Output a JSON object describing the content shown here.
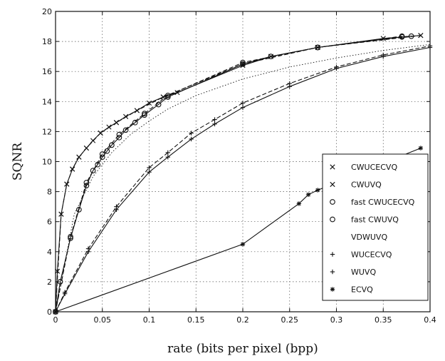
{
  "chart_data": {
    "type": "line",
    "title": "",
    "xlabel": "rate (bits per pixel (bpp)",
    "ylabel": "SQNR",
    "xlim": [
      0,
      0.4
    ],
    "ylim": [
      0,
      20
    ],
    "xticks": [
      "0",
      "0.05",
      "0.1",
      "0.15",
      "0.2",
      "0.25",
      "0.3",
      "0.35",
      "0.4"
    ],
    "yticks": [
      "0",
      "2",
      "4",
      "6",
      "8",
      "10",
      "12",
      "14",
      "16",
      "18",
      "20"
    ],
    "grid": true,
    "legend_position": "lower-right",
    "series": [
      {
        "name": "CWUCECVQ",
        "marker": "x",
        "line": "solid",
        "x": [
          0,
          0.002,
          0.006,
          0.012,
          0.018,
          0.025,
          0.033,
          0.04,
          0.048,
          0.057,
          0.065,
          0.075,
          0.087,
          0.1,
          0.115,
          0.13,
          0.2,
          0.23,
          0.28,
          0.35,
          0.39
        ],
        "y": [
          0,
          2.7,
          6.5,
          8.5,
          9.5,
          10.3,
          10.9,
          11.4,
          11.9,
          12.3,
          12.6,
          13.0,
          13.4,
          13.9,
          14.3,
          14.6,
          16.4,
          17.0,
          17.6,
          18.2,
          18.4
        ]
      },
      {
        "name": "CWUVQ",
        "marker": "x",
        "line": "dashed",
        "x": [
          0,
          0.006,
          0.012,
          0.018,
          0.025,
          0.033,
          0.048,
          0.065,
          0.087,
          0.115,
          0.2,
          0.28,
          0.39
        ],
        "y": [
          0,
          6.5,
          8.5,
          9.5,
          10.3,
          10.9,
          11.9,
          12.6,
          13.4,
          14.3,
          16.5,
          17.6,
          18.4
        ]
      },
      {
        "name": "fast CWUCECVQ",
        "marker": "o",
        "line": "solid",
        "x": [
          0,
          0.005,
          0.016,
          0.025,
          0.033,
          0.04,
          0.045,
          0.05,
          0.055,
          0.06,
          0.068,
          0.075,
          0.085,
          0.095,
          0.11,
          0.12,
          0.2,
          0.23,
          0.28,
          0.37,
          0.38
        ],
        "y": [
          0,
          2.0,
          4.9,
          6.8,
          8.4,
          9.4,
          9.8,
          10.3,
          10.7,
          11.1,
          11.6,
          12.1,
          12.6,
          13.1,
          13.8,
          14.3,
          16.5,
          17.0,
          17.6,
          18.3,
          18.35
        ]
      },
      {
        "name": "fast CWUVQ",
        "marker": "o",
        "line": "dashed",
        "x": [
          0,
          0.016,
          0.033,
          0.05,
          0.068,
          0.095,
          0.12,
          0.2,
          0.28,
          0.37
        ],
        "y": [
          0,
          5.0,
          8.6,
          10.5,
          11.8,
          13.2,
          14.4,
          16.6,
          17.6,
          18.35
        ]
      },
      {
        "name": "VDWUVQ",
        "marker": "",
        "line": "dotted",
        "x": [
          0,
          0.02,
          0.04,
          0.06,
          0.08,
          0.1,
          0.12,
          0.15,
          0.2,
          0.25,
          0.3,
          0.35,
          0.4
        ],
        "y": [
          0,
          6.5,
          9.0,
          10.6,
          11.8,
          12.7,
          13.5,
          14.4,
          15.5,
          16.3,
          16.9,
          17.4,
          17.8
        ]
      },
      {
        "name": "WUCECVQ",
        "marker": "+",
        "line": "solid",
        "x": [
          0,
          0.01,
          0.035,
          0.065,
          0.1,
          0.12,
          0.145,
          0.17,
          0.2,
          0.25,
          0.3,
          0.35,
          0.4
        ],
        "y": [
          0,
          1.2,
          4.0,
          6.8,
          9.3,
          10.3,
          11.5,
          12.5,
          13.6,
          15.0,
          16.2,
          17.0,
          17.6
        ]
      },
      {
        "name": "WUVQ",
        "marker": "+",
        "line": "dashed",
        "x": [
          0,
          0.01,
          0.035,
          0.065,
          0.1,
          0.12,
          0.145,
          0.17,
          0.2,
          0.25,
          0.3,
          0.35,
          0.4
        ],
        "y": [
          0,
          1.3,
          4.2,
          7.0,
          9.6,
          10.6,
          11.9,
          12.8,
          13.9,
          15.2,
          16.3,
          17.1,
          17.7
        ]
      },
      {
        "name": "ECVQ",
        "marker": "*",
        "line": "solid",
        "x": [
          0,
          0.2,
          0.26,
          0.27,
          0.28,
          0.3,
          0.35,
          0.39
        ],
        "y": [
          0,
          4.5,
          7.2,
          7.8,
          8.1,
          8.6,
          9.9,
          10.9
        ]
      }
    ],
    "legend": {
      "entries": [
        "CWUCECVQ",
        "CWUVQ",
        "fast CWUCECVQ",
        "fast CWUVQ",
        "VDWUVQ",
        "WUCECVQ",
        "WUVQ",
        "ECVQ"
      ],
      "markers": [
        "×",
        "×",
        "o",
        "o",
        "",
        "+",
        "+",
        "*"
      ]
    }
  }
}
